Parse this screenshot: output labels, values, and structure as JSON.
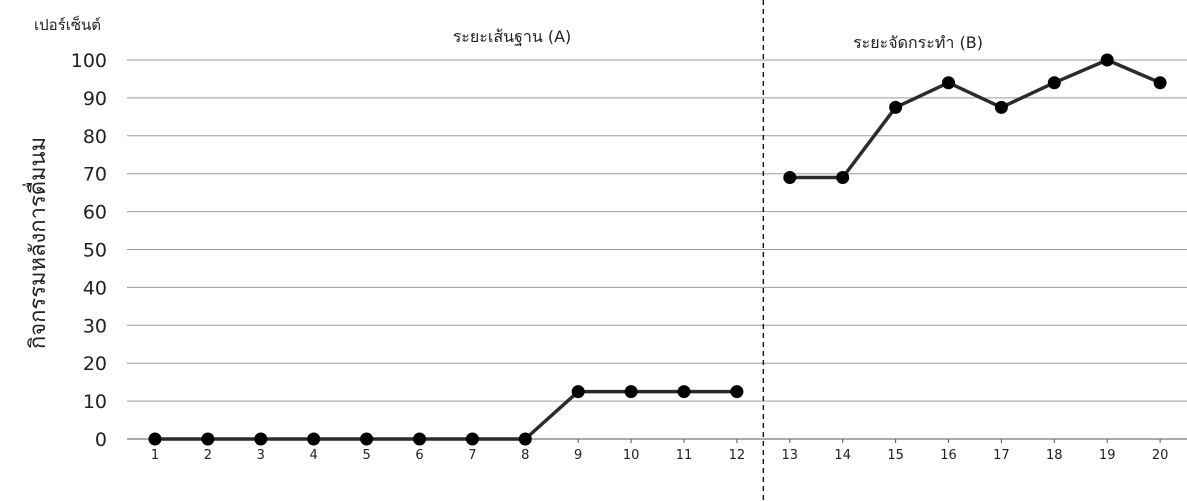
{
  "chart_data": {
    "type": "line",
    "unit_label": "เปอร์เซ็นต์",
    "ylabel": "กิจกรรมหลังการดื่มนม",
    "xlabel": "",
    "ylim": [
      0,
      100
    ],
    "y_ticks": [
      0,
      10,
      20,
      30,
      40,
      50,
      60,
      70,
      80,
      90,
      100
    ],
    "x_ticks": [
      1,
      2,
      3,
      4,
      5,
      6,
      7,
      8,
      9,
      10,
      11,
      12,
      13,
      14,
      15,
      16,
      17,
      18,
      19,
      20
    ],
    "grid": true,
    "phases": [
      {
        "label": "ระยะเส้นฐาน (A)",
        "sessions": [
          1,
          12
        ]
      },
      {
        "label": "ระยะจัดกระทำ (B)",
        "sessions": [
          13,
          20
        ]
      }
    ],
    "phase_divider_after_session": 12,
    "series": [
      {
        "x": [
          1,
          2,
          3,
          4,
          5,
          6,
          7,
          8,
          9,
          10,
          11,
          12
        ],
        "values": [
          0,
          0,
          0,
          0,
          0,
          0,
          0,
          0,
          12.5,
          12.5,
          12.5,
          12.5
        ]
      },
      {
        "x": [
          13,
          14,
          15,
          16,
          17,
          18,
          19,
          20
        ],
        "values": [
          69,
          69,
          87.5,
          94,
          87.5,
          94,
          100,
          94
        ]
      }
    ],
    "line_color": "#2b2b2b",
    "marker_color": "#000000"
  }
}
